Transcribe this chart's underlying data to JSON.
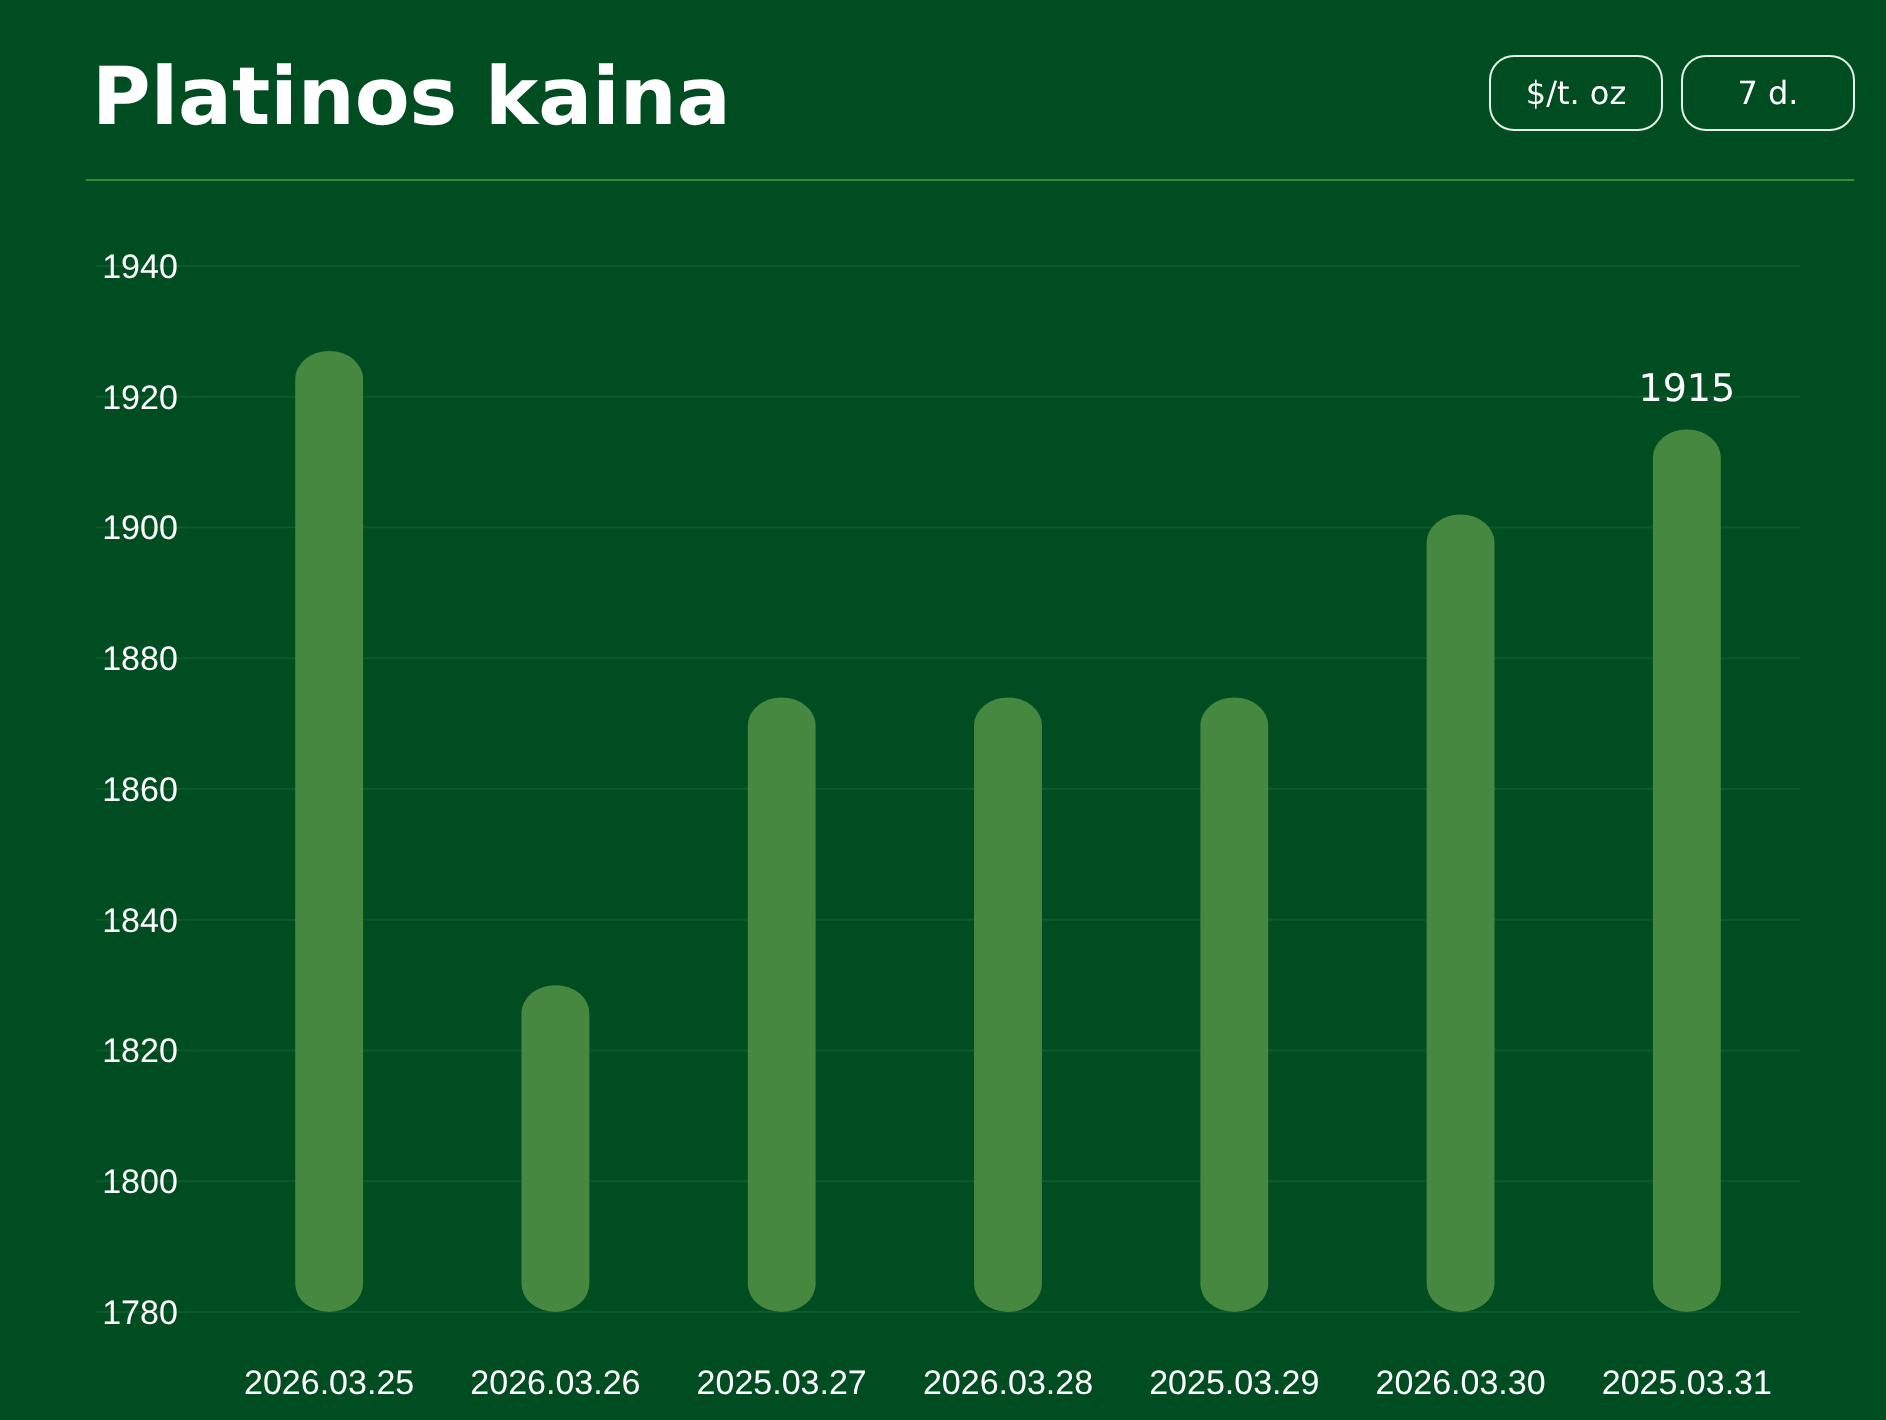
{
  "chart_data": {
    "type": "bar",
    "title": "Platinos kaina",
    "annotations": [
      "$/t. oz",
      "7 d."
    ],
    "categories": [
      "2026.03.25",
      "2026.03.26",
      "2025.03.27",
      "2026.03.28",
      "2025.03.29",
      "2026.03.30",
      "2025.03.31"
    ],
    "values": [
      1927,
      1830,
      1874,
      1874,
      1874,
      1902,
      1915
    ],
    "value_labels": [
      null,
      null,
      null,
      null,
      null,
      null,
      "1915"
    ],
    "color": "#46883f",
    "ylim": [
      1780,
      1940
    ],
    "yticks": [
      1780,
      1800,
      1820,
      1840,
      1860,
      1880,
      1900,
      1920,
      1940
    ],
    "grid": "y"
  }
}
